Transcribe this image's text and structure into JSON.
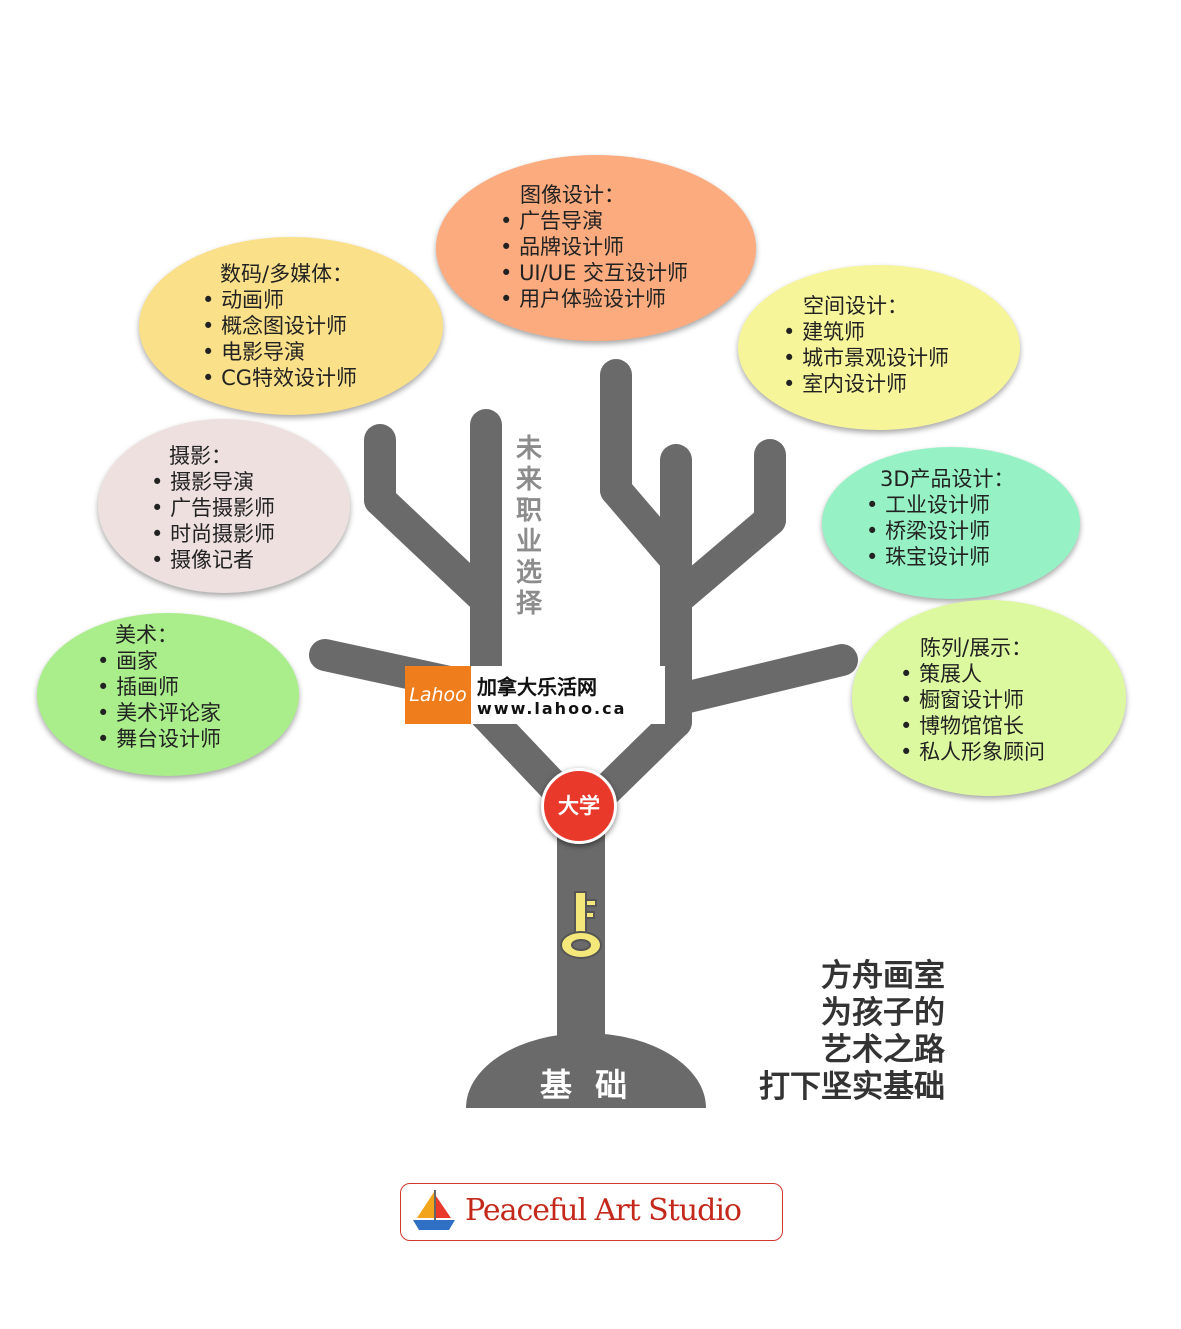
{
  "colors": {
    "trunk": "#6a6a6a",
    "university": "#e8392b",
    "key": "#f5e87a",
    "logo_orange": "#ef7d1c",
    "studio_red": "#c4281b"
  },
  "bubbles": [
    {
      "id": "image",
      "color": "#fbab7e",
      "heading": "图像设计：",
      "items": [
        "广告导演",
        "品牌设计师",
        "UI/UE 交互设计师",
        "用户体验设计师"
      ]
    },
    {
      "id": "digital",
      "color": "#fbe08a",
      "heading": "数码/多媒体：",
      "items": [
        "动画师",
        "概念图设计师",
        "电影导演",
        "CG特效设计师"
      ]
    },
    {
      "id": "space",
      "color": "#f7f59a",
      "heading": "空间设计：",
      "items": [
        "建筑师",
        "城市景观设计师",
        "室内设计师"
      ]
    },
    {
      "id": "photo",
      "color": "#ede0df",
      "heading": "摄影：",
      "items": [
        "摄影导演",
        "广告摄影师",
        "时尚摄影师",
        "摄像记者"
      ]
    },
    {
      "id": "product3d",
      "color": "#96f2c4",
      "heading": "3D产品设计：",
      "items": [
        "工业设计师",
        "桥梁设计师",
        "珠宝设计师"
      ]
    },
    {
      "id": "fineart",
      "color": "#a9ee8a",
      "heading": "美术：",
      "items": [
        "画家",
        "插画师",
        "美术评论家",
        "舞台设计师"
      ]
    },
    {
      "id": "display",
      "color": "#ddf9a0",
      "heading": "陈列/展示：",
      "items": [
        "策展人",
        "橱窗设计师",
        "博物馆馆长",
        "私人形象顾问"
      ]
    }
  ],
  "tree": {
    "vertical_label": "未来职业选择",
    "university": "大学",
    "base": "基 础"
  },
  "logo": {
    "mark": "Lahoo",
    "name": "加拿大乐活网",
    "url": "www.lahoo.ca"
  },
  "slogan": [
    "方舟画室",
    "为孩子的",
    "艺术之路",
    "打下坚实基础"
  ],
  "studio": {
    "name": "Peaceful Art Studio"
  }
}
